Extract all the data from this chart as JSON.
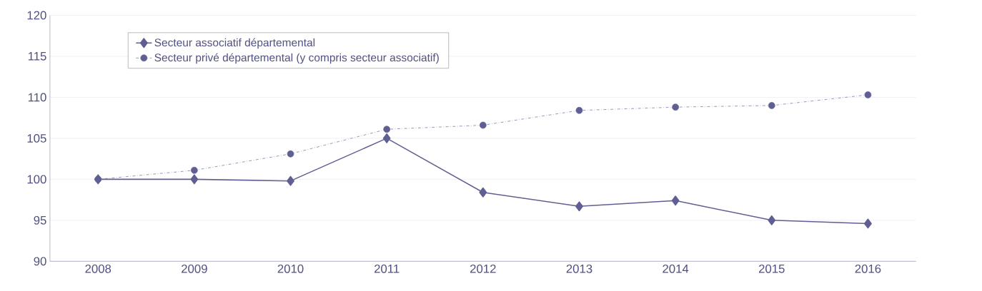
{
  "chart_data": {
    "type": "line",
    "categories": [
      "2008",
      "2009",
      "2010",
      "2011",
      "2012",
      "2013",
      "2014",
      "2015",
      "2016"
    ],
    "series": [
      {
        "name": "Secteur associatif départemental",
        "color": "#5f5f94",
        "marker": "diamond",
        "line_style": "solid",
        "values": [
          100,
          100,
          99.8,
          105.0,
          98.4,
          96.7,
          97.4,
          95.0,
          94.6
        ]
      },
      {
        "name": "Secteur privé départemental (y compris secteur associatif)",
        "color": "#5f5f94",
        "marker": "circle",
        "line_style": "dashed",
        "values": [
          100,
          101.1,
          103.1,
          106.1,
          106.6,
          108.4,
          108.8,
          109.0,
          110.3
        ]
      }
    ],
    "ylim": [
      90,
      120
    ],
    "yticks": [
      90,
      95,
      100,
      105,
      110,
      115,
      120
    ],
    "grid": "y",
    "legend": "top left"
  }
}
